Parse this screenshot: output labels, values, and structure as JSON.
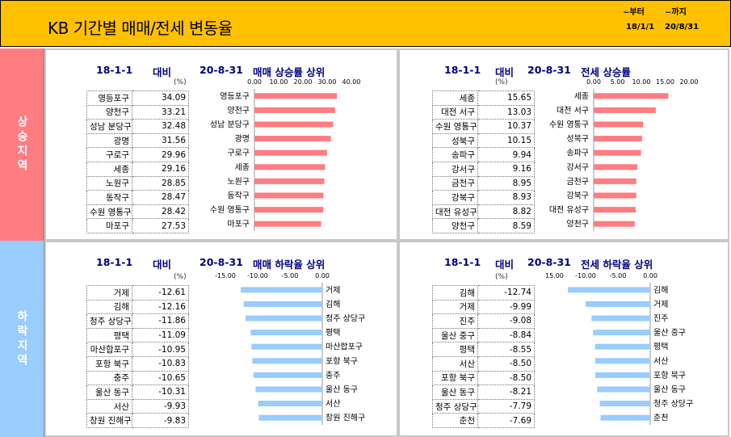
{
  "header": {
    "title": "KB 기간별 매매/전세 변동율",
    "from_label": "~부터",
    "to_label": "~까지",
    "from_date": "18/1/1",
    "to_date": "20/8/31"
  },
  "side": {
    "rising": "상승지역",
    "falling": "하락지역"
  },
  "panels": {
    "sale_up": {
      "start": "18-1-1",
      "vs": "대비",
      "end": "20-8-31",
      "heading": "매매 상승률 상위",
      "unit": "(%)"
    },
    "rent_up": {
      "start": "18-1-1",
      "vs": "대비",
      "end": "20-8-31",
      "heading": "전세 상승률",
      "unit": "(%)"
    },
    "sale_down": {
      "start": "18-1-1",
      "vs": "대비",
      "end": "20-8-31",
      "heading": "매매 하락율 상위",
      "unit": "(%)"
    },
    "rent_down": {
      "start": "18-1-1",
      "vs": "대비",
      "end": "20-8-31",
      "heading": "전세 하락율 상위",
      "unit": "(%)"
    }
  },
  "tables": {
    "sale_up": {
      "names": [
        "영등포구",
        "양천구",
        "성남 분당구",
        "광명",
        "구로구",
        "세종",
        "노원구",
        "동작구",
        "수원 영통구",
        "마포구"
      ],
      "values": [
        "34.09",
        "33.21",
        "32.48",
        "31.56",
        "29.96",
        "29.16",
        "28.85",
        "28.47",
        "28.42",
        "27.53"
      ]
    },
    "rent_up": {
      "names": [
        "세종",
        "대전 서구",
        "수원 영통구",
        "성북구",
        "송파구",
        "강서구",
        "금천구",
        "강북구",
        "대전 유성구",
        "양천구"
      ],
      "values": [
        "15.65",
        "13.03",
        "10.37",
        "10.15",
        "9.94",
        "9.16",
        "8.95",
        "8.93",
        "8.82",
        "8.59"
      ]
    },
    "sale_down": {
      "names": [
        "거제",
        "김해",
        "청주 상당구",
        "평택",
        "마산합포구",
        "포항 북구",
        "충주",
        "울산 동구",
        "서산",
        "창원 진해구"
      ],
      "values": [
        "-12.61",
        "-12.16",
        "-11.86",
        "-11.09",
        "-10.95",
        "-10.83",
        "-10.65",
        "-10.31",
        "-9.93",
        "-9.83"
      ]
    },
    "rent_down": {
      "names": [
        "김해",
        "거제",
        "진주",
        "울산 중구",
        "평택",
        "서산",
        "포항 북구",
        "울산 동구",
        "청주 상당구",
        "춘천"
      ],
      "values": [
        "-12.74",
        "-9.99",
        "-9.08",
        "-8.84",
        "-8.55",
        "-8.50",
        "-8.50",
        "-8.21",
        "-7.79",
        "-7.69"
      ]
    }
  },
  "chart_data": [
    {
      "type": "bar",
      "orientation": "horizontal",
      "title": "매매 상승률 상위",
      "categories": [
        "영등포구",
        "양천구",
        "성남 분당구",
        "광명",
        "구로구",
        "세종",
        "노원구",
        "동작구",
        "수원 영통구",
        "마포구"
      ],
      "values": [
        34.09,
        33.21,
        32.48,
        31.56,
        29.96,
        29.16,
        28.85,
        28.47,
        28.42,
        27.53
      ],
      "xlim": [
        0,
        40
      ],
      "ticks": [
        "0.00",
        "10.00",
        "20.00",
        "30.00",
        "40.00"
      ],
      "color": "#FF7C80"
    },
    {
      "type": "bar",
      "orientation": "horizontal",
      "title": "전세 상승률",
      "categories": [
        "세종",
        "대전 서구",
        "수원 영통구",
        "성북구",
        "송파구",
        "강서구",
        "금천구",
        "강북구",
        "대전 유성구",
        "양천구"
      ],
      "values": [
        15.65,
        13.03,
        10.37,
        10.15,
        9.94,
        9.16,
        8.95,
        8.93,
        8.82,
        8.59
      ],
      "xlim": [
        0,
        20
      ],
      "ticks": [
        "0.00",
        "5.00",
        "10.00",
        "15.00",
        "20.00"
      ],
      "color": "#FF7C80"
    },
    {
      "type": "bar",
      "orientation": "horizontal",
      "title": "매매 하락율 상위",
      "categories": [
        "거제",
        "김해",
        "청주 상당구",
        "평택",
        "마산합포구",
        "포항 북구",
        "충주",
        "울산 동구",
        "서산",
        "창원 진해구"
      ],
      "values": [
        -12.61,
        -12.16,
        -11.86,
        -11.09,
        -10.95,
        -10.83,
        -10.65,
        -10.31,
        -9.93,
        -9.83
      ],
      "xlim": [
        -15,
        0
      ],
      "ticks": [
        "-15.00",
        "-10.00",
        "-5.00",
        "0.00"
      ],
      "color": "#99CCFF"
    },
    {
      "type": "bar",
      "orientation": "horizontal",
      "title": "전세 하락율 상위",
      "categories": [
        "김해",
        "거제",
        "진주",
        "울산 중구",
        "평택",
        "서산",
        "포항 북구",
        "울산 동구",
        "청주 상당구",
        "춘천"
      ],
      "values": [
        -12.74,
        -9.99,
        -9.08,
        -8.84,
        -8.55,
        -8.5,
        -8.5,
        -8.21,
        -7.79,
        -7.69
      ],
      "xlim": [
        -15,
        0
      ],
      "ticks": [
        "-15.00",
        "-10.00",
        "-5.00",
        "0.00"
      ],
      "color": "#99CCFF"
    }
  ]
}
